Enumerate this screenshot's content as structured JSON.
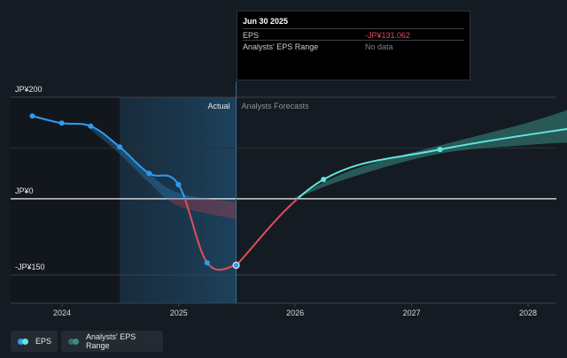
{
  "chart_data": {
    "type": "line",
    "x_ticks": [
      "2024",
      "2025",
      "2026",
      "2027",
      "2028"
    ],
    "y_ticks": [
      {
        "label": "JP¥200",
        "value": 200
      },
      {
        "label": "JP¥0",
        "value": 0
      },
      {
        "label": "-JP¥150",
        "value": -150
      }
    ],
    "ylim": [
      -150,
      200
    ],
    "divider_date": "2025-06-30",
    "sections": {
      "actual": "Actual",
      "forecast": "Analysts Forecasts"
    },
    "series": [
      {
        "name": "EPS",
        "color": "#2f9bf0",
        "negative_color": "#e34c5b",
        "points": [
          {
            "date": "2023-09-30",
            "value": 163
          },
          {
            "date": "2023-12-31",
            "value": 149
          },
          {
            "date": "2024-03-31",
            "value": 143
          },
          {
            "date": "2024-06-30",
            "value": 102
          },
          {
            "date": "2024-09-30",
            "value": 50
          },
          {
            "date": "2024-12-31",
            "value": 28
          },
          {
            "date": "2025-03-31",
            "value": -126
          },
          {
            "date": "2025-06-30",
            "value": -131.062
          }
        ]
      },
      {
        "name": "EPS Forecast",
        "color": "#5fe8e0",
        "negative_color": "#e34c5b",
        "points": [
          {
            "date": "2025-06-30",
            "value": -131.062
          },
          {
            "date": "2026-03-31",
            "value": 38
          },
          {
            "date": "2027-03-31",
            "value": 97
          },
          {
            "date": "2028-06-30",
            "value": 143
          }
        ]
      }
    ],
    "forecast_range": {
      "name": "Analysts' EPS Range",
      "color": "#2f6f6a",
      "upper": [
        {
          "date": "2026-01-01",
          "value": 3
        },
        {
          "date": "2026-06-30",
          "value": 57
        },
        {
          "date": "2027-03-31",
          "value": 105
        },
        {
          "date": "2027-12-31",
          "value": 150
        },
        {
          "date": "2028-06-30",
          "value": 187
        }
      ],
      "lower": [
        {
          "date": "2026-01-01",
          "value": 1
        },
        {
          "date": "2026-06-30",
          "value": 43
        },
        {
          "date": "2027-03-31",
          "value": 89
        },
        {
          "date": "2027-12-31",
          "value": 106
        },
        {
          "date": "2028-06-30",
          "value": 112
        }
      ]
    },
    "past_range": {
      "upper": [
        {
          "date": "2024-03-31",
          "value": 143
        },
        {
          "date": "2024-06-30",
          "value": 102
        },
        {
          "date": "2024-09-30",
          "value": 50
        },
        {
          "date": "2024-12-31",
          "value": 12
        },
        {
          "date": "2025-06-30",
          "value": -7
        }
      ],
      "lower": [
        {
          "date": "2024-03-31",
          "value": 136
        },
        {
          "date": "2024-06-30",
          "value": 88
        },
        {
          "date": "2024-09-30",
          "value": 32
        },
        {
          "date": "2024-12-31",
          "value": -14
        },
        {
          "date": "2025-06-30",
          "value": -40
        }
      ]
    }
  },
  "tooltip": {
    "date": "Jun 30 2025",
    "rows": [
      {
        "label": "EPS",
        "value": "-JP¥131.062",
        "value_color": "#e34c5b"
      },
      {
        "label": "Analysts' EPS Range",
        "value": "No data",
        "value_color": "#7d848b"
      }
    ]
  },
  "legend": {
    "items": [
      {
        "label": "EPS",
        "colors": [
          "#2f9bf0",
          "#5fe8e0"
        ]
      },
      {
        "label": "Analysts' EPS Range",
        "colors": [
          "#2f6f6a",
          "#3f8a84"
        ]
      }
    ]
  }
}
